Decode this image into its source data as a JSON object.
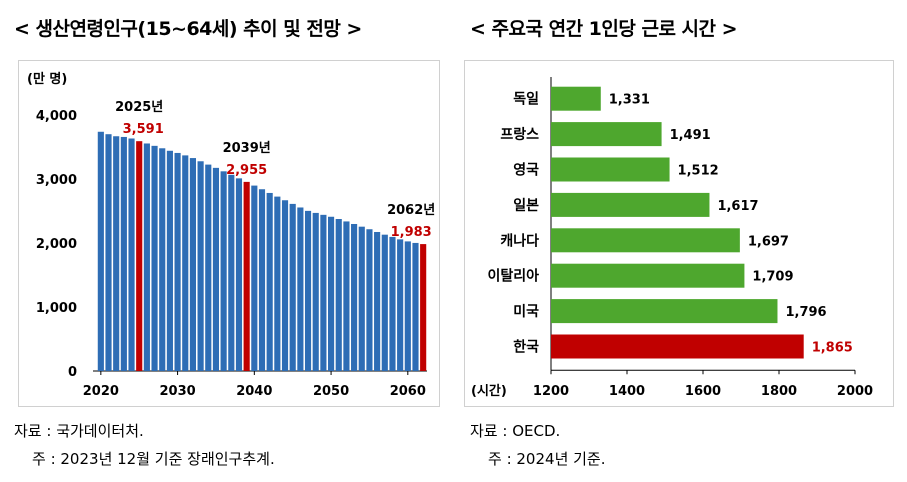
{
  "left_title": "< 생산연령인구(15~64세) 추이 및 전망 >",
  "right_title": "< 주요국 연간 1인당 근로 시간 >",
  "left_notes": {
    "source": "자료 : 국가데이터처.",
    "note": "주 : 2023년 12월 기준 장래인구추계."
  },
  "right_notes": {
    "source": "자료 : OECD.",
    "note": "주 : 2024년 기준."
  },
  "colors": {
    "bar_blue": "#2e6db5",
    "bar_red": "#c00000",
    "bar_green": "#4ea72e",
    "highlight_text": "#c00000"
  },
  "chart_data": [
    {
      "type": "bar",
      "unit_label": "(만 명)",
      "x_ticks": [
        2020,
        2030,
        2040,
        2050,
        2060
      ],
      "ylim": [
        0,
        4000
      ],
      "y_ticks": [
        0,
        1000,
        2000,
        3000,
        4000
      ],
      "y_tick_labels": [
        "0",
        "1,000",
        "2,000",
        "3,000",
        "4,000"
      ],
      "x": [
        2020,
        2021,
        2022,
        2023,
        2024,
        2025,
        2026,
        2027,
        2028,
        2029,
        2030,
        2031,
        2032,
        2033,
        2034,
        2035,
        2036,
        2037,
        2038,
        2039,
        2040,
        2041,
        2042,
        2043,
        2044,
        2045,
        2046,
        2047,
        2048,
        2049,
        2050,
        2051,
        2052,
        2053,
        2054,
        2055,
        2056,
        2057,
        2058,
        2059,
        2060,
        2061,
        2062
      ],
      "values": [
        3738,
        3700,
        3668,
        3657,
        3633,
        3591,
        3555,
        3518,
        3480,
        3441,
        3407,
        3369,
        3327,
        3277,
        3225,
        3174,
        3120,
        3065,
        3010,
        2955,
        2897,
        2840,
        2782,
        2725,
        2668,
        2611,
        2555,
        2502,
        2470,
        2440,
        2410,
        2375,
        2337,
        2297,
        2255,
        2215,
        2172,
        2130,
        2095,
        2057,
        2025,
        2001,
        1983
      ],
      "highlighted": [
        2025,
        2039,
        2062
      ],
      "annotations": [
        {
          "year": "2025년",
          "value": "3,591"
        },
        {
          "year": "2039년",
          "value": "2,955"
        },
        {
          "year": "2062년",
          "value": "1,983"
        }
      ]
    },
    {
      "type": "bar",
      "orientation": "horizontal",
      "categories": [
        "독일",
        "프랑스",
        "영국",
        "일본",
        "캐나다",
        "이탈리아",
        "미국",
        "한국"
      ],
      "values": [
        1331,
        1491,
        1512,
        1617,
        1697,
        1709,
        1796,
        1865
      ],
      "value_labels": [
        "1,331",
        "1,491",
        "1,512",
        "1,617",
        "1,697",
        "1,709",
        "1,796",
        "1,865"
      ],
      "highlighted": "한국",
      "xlim": [
        1200,
        2000
      ],
      "x_ticks": [
        1200,
        1400,
        1600,
        1800,
        2000
      ],
      "unit_label": "(시간)"
    }
  ]
}
